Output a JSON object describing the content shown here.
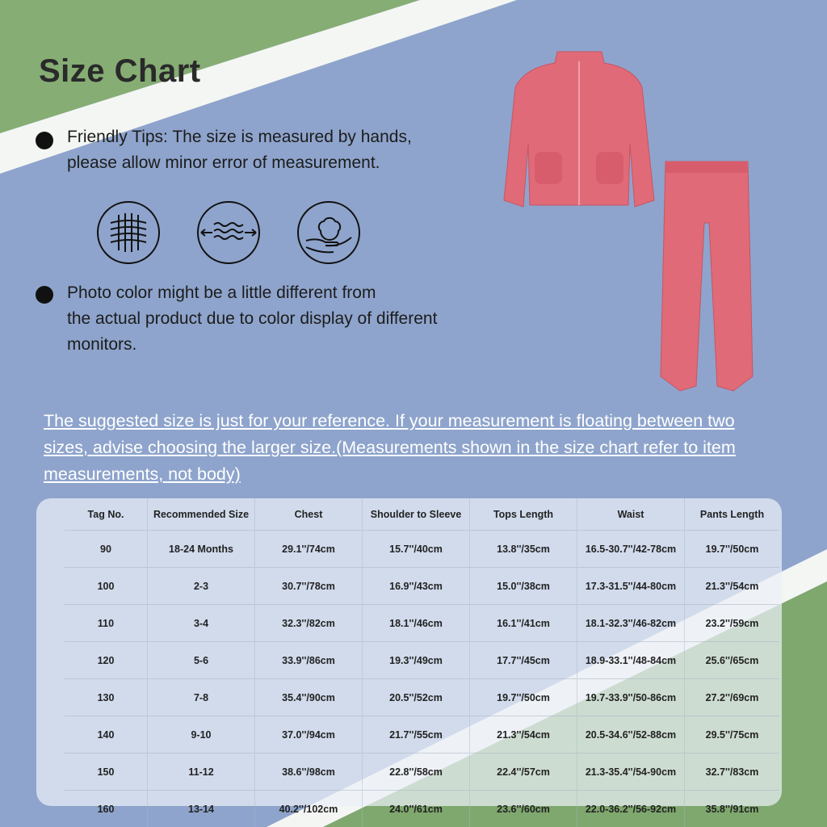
{
  "title": "Size Chart",
  "tips": [
    {
      "lines": [
        "Friendly Tips: The size is measured by hands,",
        "please allow minor error of measurement."
      ]
    },
    {
      "lines": [
        "Photo color might be a little different from",
        "the actual product due to color display of different",
        "monitors."
      ]
    }
  ],
  "icons": [
    "fabric-mesh-icon",
    "stretch-wave-icon",
    "cotton-hand-icon"
  ],
  "note": "The suggested size is just for your reference. If your measurement is floating between two sizes, advise choosing the larger size.(Measurements shown in the size chart refer to item measurements, not body)",
  "colors": {
    "background_blue": "#8ea4cc",
    "accent_green": "#7fa86e",
    "garment_pink": "#e06a78"
  },
  "table": {
    "headers": [
      "Tag No.",
      "Recommended Size",
      "Chest",
      "Shoulder to Sleeve",
      "Tops Length",
      "Waist",
      "Pants Length"
    ],
    "rows": [
      [
        "90",
        "18-24 Months",
        "29.1''/74cm",
        "15.7''/40cm",
        "13.8''/35cm",
        "16.5-30.7''/42-78cm",
        "19.7''/50cm"
      ],
      [
        "100",
        "2-3",
        "30.7''/78cm",
        "16.9''/43cm",
        "15.0''/38cm",
        "17.3-31.5''/44-80cm",
        "21.3''/54cm"
      ],
      [
        "110",
        "3-4",
        "32.3''/82cm",
        "18.1''/46cm",
        "16.1''/41cm",
        "18.1-32.3''/46-82cm",
        "23.2''/59cm"
      ],
      [
        "120",
        "5-6",
        "33.9''/86cm",
        "19.3''/49cm",
        "17.7''/45cm",
        "18.9-33.1''/48-84cm",
        "25.6''/65cm"
      ],
      [
        "130",
        "7-8",
        "35.4''/90cm",
        "20.5''/52cm",
        "19.7''/50cm",
        "19.7-33.9''/50-86cm",
        "27.2''/69cm"
      ],
      [
        "140",
        "9-10",
        "37.0''/94cm",
        "21.7''/55cm",
        "21.3''/54cm",
        "20.5-34.6''/52-88cm",
        "29.5''/75cm"
      ],
      [
        "150",
        "11-12",
        "38.6''/98cm",
        "22.8''/58cm",
        "22.4''/57cm",
        "21.3-35.4''/54-90cm",
        "32.7''/83cm"
      ],
      [
        "160",
        "13-14",
        "40.2''/102cm",
        "24.0''/61cm",
        "23.6''/60cm",
        "22.0-36.2''/56-92cm",
        "35.8''/91cm"
      ]
    ]
  }
}
